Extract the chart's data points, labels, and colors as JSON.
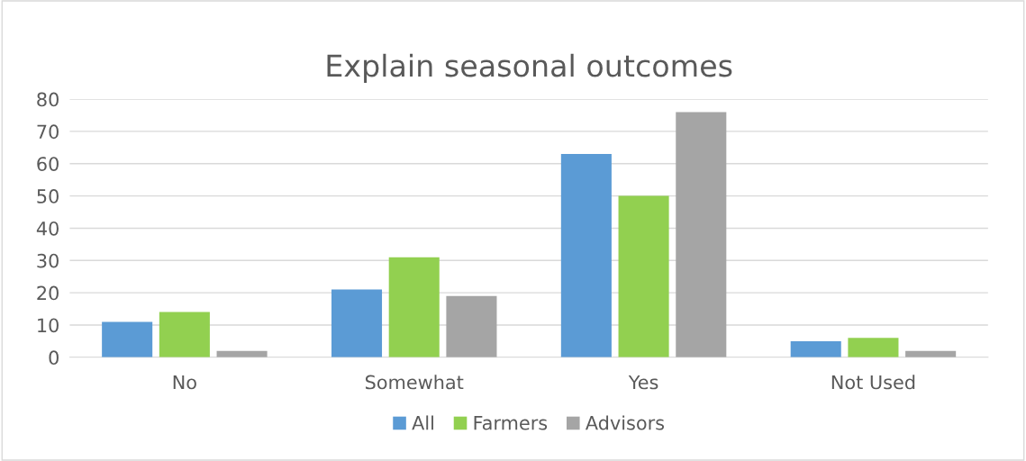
{
  "chart_data": {
    "type": "bar",
    "title": "Explain seasonal outcomes",
    "categories": [
      "No",
      "Somewhat",
      "Yes",
      "Not Used"
    ],
    "series": [
      {
        "name": "All",
        "color": "#5b9bd5",
        "values": [
          11,
          21,
          63,
          5
        ]
      },
      {
        "name": "Farmers",
        "color": "#92d050",
        "values": [
          14,
          31,
          50,
          6
        ]
      },
      {
        "name": "Advisors",
        "color": "#a5a5a5",
        "values": [
          2,
          19,
          76,
          2
        ]
      }
    ],
    "ylim": [
      0,
      80
    ],
    "yticks": [
      0,
      10,
      20,
      30,
      40,
      50,
      60,
      70,
      80
    ],
    "grid": "y",
    "legend": "bottom"
  }
}
